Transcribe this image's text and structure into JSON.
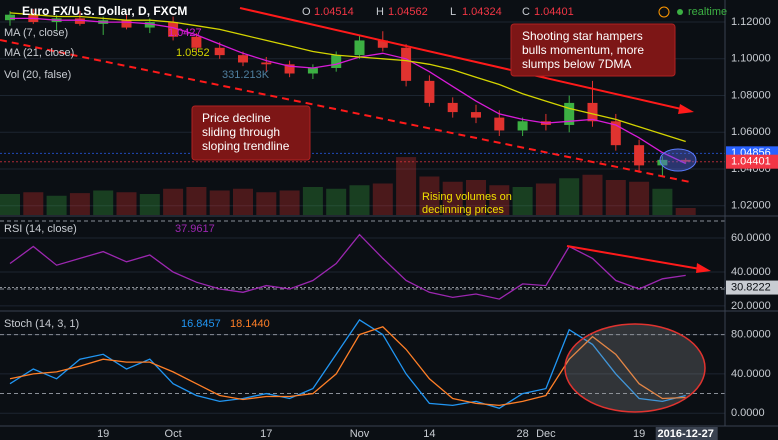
{
  "toolbar": {
    "symbol": "Euro FX/U.S. Dollar, D, FXCM",
    "ohlc": [
      {
        "key": "O",
        "value": "1.04514"
      },
      {
        "key": "H",
        "value": "1.04562"
      },
      {
        "key": "L",
        "value": "1.04324"
      },
      {
        "key": "C",
        "value": "1.04401"
      }
    ],
    "status": "realtime"
  },
  "annotations": {
    "shooting_star": [
      "Shooting star hampers",
      "bulls momentum, more",
      "slumps below 7DMA"
    ],
    "price_decline": [
      "Price decline",
      "sliding through",
      "sloping trendline"
    ],
    "volumes": [
      "Rising volumes on",
      "declinning prices"
    ]
  },
  "chart_data": [
    {
      "type": "candlestick",
      "categories": [
        null,
        null,
        null,
        null,
        "19",
        null,
        null,
        "Oct",
        null,
        null,
        null,
        "17",
        null,
        null,
        null,
        "Nov",
        null,
        null,
        "14",
        null,
        null,
        null,
        "28",
        "Dec",
        null,
        null,
        null,
        "19",
        null,
        "2016-12-27"
      ],
      "open": [
        1.121,
        1.124,
        1.12,
        1.122,
        1.119,
        1.121,
        1.117,
        1.12,
        1.112,
        1.106,
        1.102,
        1.098,
        1.097,
        1.092,
        1.095,
        1.102,
        1.11,
        1.106,
        1.088,
        1.076,
        1.071,
        1.068,
        1.061,
        1.066,
        1.064,
        1.076,
        1.066,
        1.053,
        1.042,
        1.045
      ],
      "high": [
        1.126,
        1.127,
        1.124,
        1.126,
        1.123,
        1.124,
        1.122,
        1.123,
        1.114,
        1.109,
        1.104,
        1.101,
        1.099,
        1.097,
        1.104,
        1.113,
        1.115,
        1.108,
        1.091,
        1.079,
        1.075,
        1.072,
        1.068,
        1.07,
        1.08,
        1.088,
        1.07,
        1.056,
        1.047,
        1.046
      ],
      "low": [
        1.118,
        1.119,
        1.115,
        1.118,
        1.113,
        1.116,
        1.114,
        1.11,
        1.104,
        1.1,
        1.096,
        1.093,
        1.09,
        1.089,
        1.093,
        1.1,
        1.104,
        1.085,
        1.074,
        1.068,
        1.065,
        1.058,
        1.058,
        1.061,
        1.06,
        1.063,
        1.05,
        1.038,
        1.036,
        1.043
      ],
      "close": [
        1.124,
        1.12,
        1.122,
        1.119,
        1.121,
        1.117,
        1.12,
        1.112,
        1.106,
        1.102,
        1.098,
        1.097,
        1.092,
        1.095,
        1.102,
        1.11,
        1.106,
        1.088,
        1.076,
        1.071,
        1.068,
        1.061,
        1.066,
        1.064,
        1.076,
        1.066,
        1.053,
        1.042,
        1.045,
        1.044
      ],
      "up_color": "#3cb043",
      "down_color": "#e0332f",
      "series": [
        {
          "name": "MA (7, close)",
          "color": "#d81bd8",
          "last_label": "1.0427",
          "values": [
            1.122,
            1.122,
            1.121,
            1.121,
            1.12,
            1.12,
            1.119,
            1.117,
            1.113,
            1.108,
            1.103,
            1.099,
            1.096,
            1.095,
            1.097,
            1.101,
            1.103,
            1.1,
            1.093,
            1.085,
            1.077,
            1.07,
            1.067,
            1.065,
            1.066,
            1.067,
            1.064,
            1.057,
            1.049,
            1.043
          ]
        },
        {
          "name": "MA (21, close)",
          "color": "#d4d400",
          "last_label": "1.0552",
          "values": [
            1.125,
            1.124,
            1.123,
            1.123,
            1.122,
            1.121,
            1.121,
            1.12,
            1.118,
            1.116,
            1.113,
            1.11,
            1.107,
            1.104,
            1.102,
            1.101,
            1.1,
            1.099,
            1.097,
            1.094,
            1.09,
            1.086,
            1.081,
            1.077,
            1.073,
            1.07,
            1.067,
            1.063,
            1.059,
            1.055
          ]
        }
      ],
      "volume": {
        "name": "Vol (20, false)",
        "last_label": "331.213K",
        "vlim": [
          0,
          400
        ],
        "values": [
          120,
          130,
          110,
          125,
          140,
          130,
          120,
          150,
          160,
          140,
          150,
          130,
          140,
          160,
          150,
          170,
          180,
          331,
          220,
          190,
          200,
          170,
          160,
          180,
          210,
          230,
          200,
          190,
          150,
          40
        ]
      },
      "ylim": [
        1.015,
        1.132
      ],
      "yticks": [
        {
          "value": 1.02,
          "label": "1.02000"
        },
        {
          "value": 1.04,
          "label": "1.04000"
        },
        {
          "value": 1.06,
          "label": "1.06000"
        },
        {
          "value": 1.08,
          "label": "1.08000"
        },
        {
          "value": 1.1,
          "label": "1.10000"
        },
        {
          "value": 1.12,
          "label": "1.12000"
        }
      ],
      "price_tags": [
        {
          "value": 1.04856,
          "label": "1.04856",
          "color": "#2962ff"
        },
        {
          "value": 1.04401,
          "label": "1.04401",
          "color": "#f23645"
        }
      ],
      "grid": true
    },
    {
      "type": "line",
      "title": "RSI (14, close)",
      "series": [
        {
          "color": "#9c27b0",
          "last_label": "37.9617",
          "values": [
            45,
            55,
            44,
            48,
            52,
            46,
            50,
            40,
            34,
            30,
            28,
            32,
            30,
            35,
            45,
            62,
            48,
            35,
            28,
            25,
            27,
            24,
            33,
            32,
            55,
            48,
            35,
            30,
            36,
            38
          ]
        }
      ],
      "ylim": [
        17.6,
        71.8
      ],
      "yticks": [
        {
          "value": 20,
          "label": "20.0000"
        },
        {
          "value": 40,
          "label": "40.0000"
        },
        {
          "value": 60,
          "label": "60.0000"
        }
      ],
      "bands": [
        30,
        70
      ],
      "price_tags": [
        {
          "value": 30.8222,
          "label": "30.8222",
          "color": "#c8ccd2"
        }
      ],
      "grid": true
    },
    {
      "type": "line",
      "title": "Stoch (14, 3, 1)",
      "series": [
        {
          "color": "#2196f3",
          "last_label": "16.8457",
          "values": [
            30,
            45,
            35,
            55,
            60,
            45,
            55,
            30,
            18,
            12,
            15,
            20,
            15,
            25,
            60,
            95,
            80,
            40,
            10,
            8,
            12,
            5,
            20,
            25,
            85,
            70,
            40,
            15,
            12,
            18
          ]
        },
        {
          "color": "#ff7f27",
          "last_label": "18.1440",
          "values": [
            35,
            40,
            42,
            48,
            55,
            52,
            52,
            42,
            30,
            18,
            14,
            17,
            17,
            20,
            40,
            80,
            88,
            65,
            35,
            15,
            10,
            8,
            12,
            18,
            55,
            78,
            60,
            30,
            15,
            16
          ]
        }
      ],
      "ylim": [
        -12,
        102
      ],
      "yticks": [
        {
          "value": 0,
          "label": "0.0000"
        },
        {
          "value": 40,
          "label": "40.0000"
        },
        {
          "value": 80,
          "label": "80.0000"
        }
      ],
      "bands": [
        20,
        80
      ],
      "grid": true
    }
  ]
}
